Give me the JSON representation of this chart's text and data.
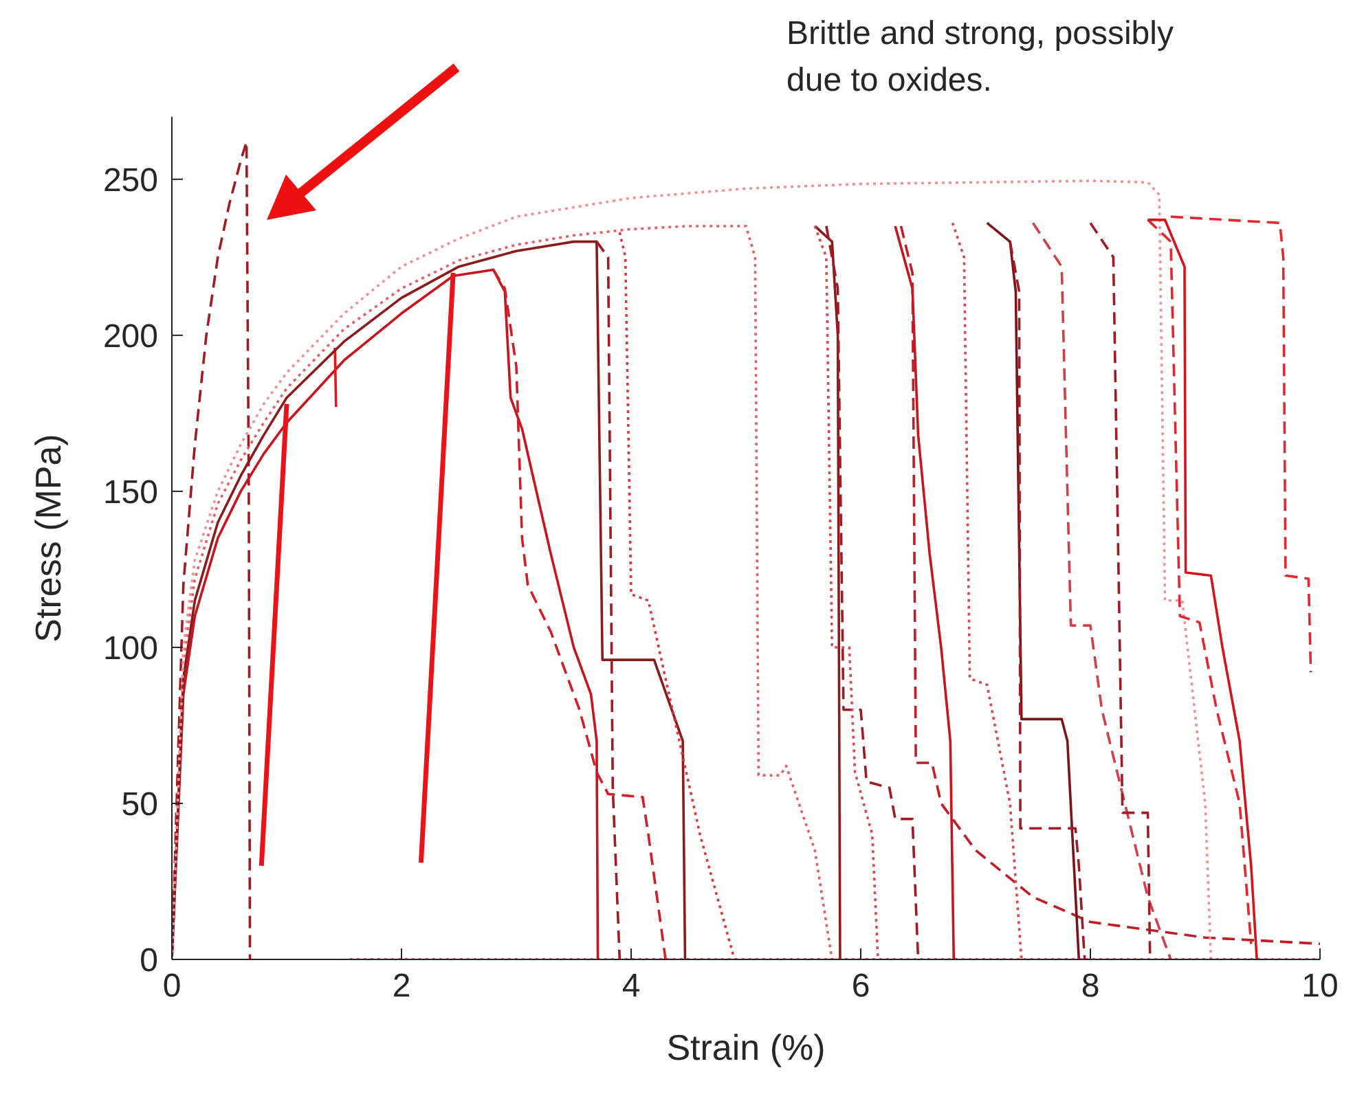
{
  "chart_data": {
    "type": "line",
    "xlabel": "Strain (%)",
    "ylabel": "Stress (MPa)",
    "xlim": [
      0,
      10
    ],
    "ylim": [
      0,
      270
    ],
    "xticks": [
      0,
      2,
      4,
      6,
      8,
      10
    ],
    "yticks": [
      0,
      50,
      100,
      150,
      200,
      250
    ],
    "marker": "none",
    "annotations": [
      "Brittle and strong, possibly due to oxides."
    ],
    "series": [
      {
        "color": "#a01c24",
        "line_style": "dashed",
        "x": [
          0,
          0.1,
          0.2,
          0.3,
          0.4,
          0.5,
          0.6,
          0.65,
          0.67,
          0.68
        ],
        "values": [
          0,
          120,
          165,
          200,
          225,
          242,
          256,
          262,
          150,
          0
        ]
      },
      {
        "color": "#c8141e",
        "line_style": "solid",
        "x": [
          0,
          0.1,
          0.2,
          0.4,
          0.6,
          0.8,
          1.0,
          1.5,
          2.0,
          2.45,
          2.8,
          2.9,
          2.95,
          3.05,
          3.3,
          3.5,
          3.65,
          3.7,
          3.71
        ],
        "values": [
          0,
          85,
          110,
          135,
          150,
          162,
          172,
          192,
          207,
          219,
          221,
          214,
          180,
          170,
          130,
          100,
          85,
          70,
          0
        ]
      },
      {
        "color": "#e8141a",
        "line_style": "solid",
        "x": [
          0.78,
          1.0
        ],
        "values": [
          30,
          178
        ]
      },
      {
        "color": "#e8141a",
        "line_style": "solid",
        "x": [
          2.17,
          2.45
        ],
        "values": [
          31,
          220
        ]
      },
      {
        "color": "#e8141a",
        "line_style": "solid",
        "x": [
          1.42,
          1.43
        ],
        "values": [
          196,
          177
        ]
      },
      {
        "color": "#d01e28",
        "line_style": "dashed",
        "x": [
          2.8,
          2.9,
          3.0,
          3.05,
          3.1,
          3.3,
          3.55,
          3.7,
          3.8,
          4.1,
          4.15,
          4.3
        ],
        "values": [
          221,
          215,
          190,
          135,
          120,
          105,
          80,
          60,
          53,
          52,
          40,
          0
        ]
      },
      {
        "color": "#8b1a1a",
        "line_style": "solid",
        "x": [
          0,
          0.1,
          0.2,
          0.4,
          0.6,
          0.8,
          1.0,
          1.5,
          2.0,
          2.5,
          3.0,
          3.5,
          3.7,
          3.75,
          4.2,
          4.45,
          4.47
        ],
        "values": [
          0,
          90,
          115,
          140,
          155,
          168,
          180,
          198,
          212,
          222,
          227,
          230,
          230,
          96,
          96,
          70,
          0
        ]
      },
      {
        "color": "#a01c24",
        "line_style": "dashed",
        "x": [
          3.7,
          3.8,
          3.84,
          3.9
        ],
        "values": [
          230,
          225,
          55,
          0
        ]
      },
      {
        "color": "#d83a40",
        "line_style": "dotted",
        "x": [
          3.9,
          3.95,
          4.0,
          4.15,
          4.3,
          4.6,
          4.9
        ],
        "values": [
          233,
          225,
          117,
          115,
          90,
          40,
          0
        ]
      },
      {
        "color": "#e06068",
        "line_style": "dotted",
        "x": [
          0,
          0.1,
          0.2,
          0.4,
          0.6,
          0.8,
          1.0,
          1.5,
          2.0,
          2.5,
          3.0,
          3.5,
          4.0,
          4.5,
          5.0,
          5.08,
          5.11,
          5.3,
          5.35,
          5.6,
          5.75
        ],
        "values": [
          0,
          95,
          122,
          146,
          160,
          172,
          183,
          202,
          215,
          224,
          229,
          232,
          234,
          235,
          235,
          225,
          59,
          59,
          62,
          35,
          0
        ]
      },
      {
        "color": "#8b1a1a",
        "line_style": "solid",
        "x": [
          5.6,
          5.75,
          5.8,
          5.82
        ],
        "values": [
          235,
          230,
          200,
          0
        ]
      },
      {
        "color": "#a01c24",
        "line_style": "dashed",
        "x": [
          5.7,
          5.8,
          5.85,
          6.0,
          6.05,
          6.25,
          6.3,
          6.45,
          6.5
        ],
        "values": [
          235,
          215,
          80,
          80,
          57,
          55,
          45,
          45,
          0
        ]
      },
      {
        "color": "#d84850",
        "line_style": "dotted",
        "x": [
          5.6,
          5.7,
          5.75,
          5.9,
          5.95,
          6.1,
          6.15
        ],
        "values": [
          235,
          225,
          100,
          100,
          60,
          40,
          0
        ]
      },
      {
        "color": "#c8141e",
        "line_style": "solid",
        "x": [
          6.3,
          6.45,
          6.5,
          6.6,
          6.7,
          6.78,
          6.81
        ],
        "values": [
          235,
          215,
          168,
          130,
          100,
          70,
          0
        ]
      },
      {
        "color": "#c01e26",
        "line_style": "dashed",
        "x": [
          6.35,
          6.45,
          6.48,
          6.62,
          6.7,
          7.0,
          7.5,
          8.0,
          9.0,
          10.0
        ],
        "values": [
          235,
          220,
          63,
          63,
          50,
          35,
          20,
          12,
          7,
          5
        ]
      },
      {
        "color": "#d84850",
        "line_style": "dotted",
        "x": [
          6.8,
          6.9,
          6.95,
          7.1,
          7.3,
          7.4
        ],
        "values": [
          236,
          225,
          90,
          88,
          50,
          0
        ]
      },
      {
        "color": "#7a1418",
        "line_style": "solid",
        "x": [
          7.1,
          7.3,
          7.35,
          7.4,
          7.75,
          7.8,
          7.9
        ],
        "values": [
          236,
          230,
          214,
          77,
          77,
          70,
          0
        ]
      },
      {
        "color": "#a01c24",
        "line_style": "dashed",
        "x": [
          7.3,
          7.38,
          7.39,
          7.87,
          7.9,
          7.95
        ],
        "values": [
          230,
          214,
          42,
          42,
          30,
          0
        ]
      },
      {
        "color": "#d04048",
        "line_style": "dashed",
        "x": [
          7.5,
          7.75,
          7.83,
          8.0,
          8.1,
          8.3,
          8.5,
          8.7
        ],
        "values": [
          236,
          222,
          107,
          107,
          80,
          50,
          20,
          0
        ]
      },
      {
        "color": "#a01c24",
        "line_style": "dashed",
        "x": [
          8.0,
          8.2,
          8.28,
          8.5,
          8.52
        ],
        "values": [
          236,
          225,
          47,
          47,
          0
        ]
      },
      {
        "color": "#f09098",
        "line_style": "dotted",
        "x": [
          0,
          0.1,
          0.2,
          0.4,
          0.6,
          0.8,
          1.0,
          1.5,
          2.0,
          2.5,
          3.0,
          4.0,
          5.0,
          6.0,
          7.0,
          8.0,
          8.5,
          8.6,
          8.65,
          8.8,
          9.0,
          9.05
        ],
        "values": [
          0,
          100,
          128,
          150,
          165,
          178,
          188,
          207,
          222,
          231,
          238,
          244,
          247,
          248.5,
          249,
          249.5,
          249,
          245,
          115,
          115,
          50,
          0
        ]
      },
      {
        "color": "#e02830",
        "line_style": "dashed",
        "x": [
          8.5,
          8.7,
          8.78,
          8.95,
          9.1,
          9.3,
          9.4
        ],
        "values": [
          237,
          230,
          110,
          108,
          80,
          50,
          5
        ]
      },
      {
        "color": "#d4141c",
        "line_style": "solid",
        "x": [
          8.5,
          8.65,
          8.82,
          8.83,
          9.05,
          9.15,
          9.3,
          9.4,
          9.45
        ],
        "values": [
          237,
          237,
          222,
          124,
          123,
          100,
          70,
          30,
          0
        ]
      },
      {
        "color": "#e02830",
        "line_style": "dashed",
        "x": [
          8.7,
          9.65,
          9.68,
          9.7,
          9.9,
          9.92
        ],
        "values": [
          238,
          236,
          225,
          123,
          122,
          92
        ]
      },
      {
        "color": "#e02830",
        "line_style": "dotted",
        "x": [
          1.55,
          10.0
        ],
        "values": [
          0,
          0
        ]
      }
    ]
  }
}
